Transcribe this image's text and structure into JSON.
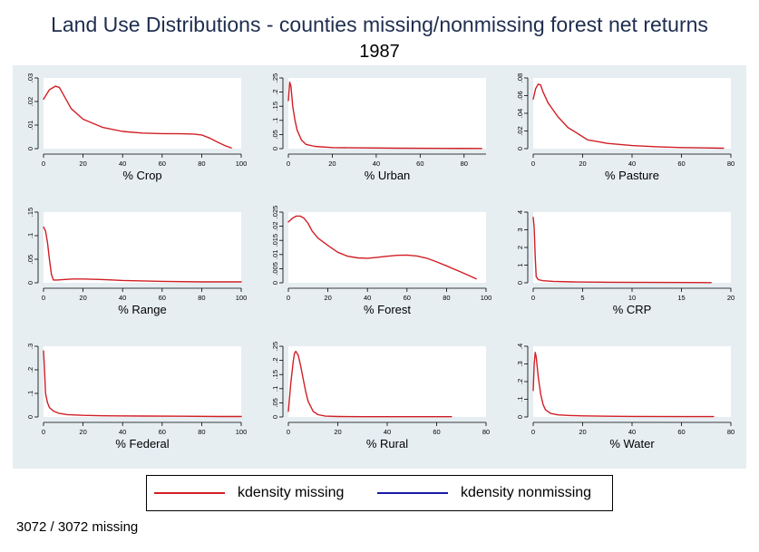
{
  "title": "Land Use Distributions - counties missing/nonmissing forest net returns",
  "subtitle": "1987",
  "note": "3072 / 3072 missing",
  "legend": {
    "placement": "bottom",
    "items": [
      {
        "label": "kdensity missing",
        "color": "#d11f26"
      },
      {
        "label": "kdensity nonmissing",
        "color": "#1a1aa6"
      }
    ]
  },
  "colors": {
    "background": "#e6eef2",
    "plot": "#ffffff",
    "missing": "#d11f26",
    "nonmissing": "#1a1aa6",
    "title": "#1e2d4f"
  },
  "chart_data": [
    {
      "type": "line",
      "xlabel": "% Crop",
      "xlim": [
        0,
        100
      ],
      "xticks": [
        0,
        20,
        40,
        60,
        80,
        100
      ],
      "ylim": [
        0,
        0.03
      ],
      "yticks": [
        "0",
        ".01",
        ".02",
        ".03"
      ],
      "series": [
        {
          "name": "kdensity missing",
          "x": [
            0,
            3,
            6,
            8,
            10,
            14,
            20,
            30,
            40,
            50,
            60,
            70,
            76,
            80,
            84,
            88,
            92,
            95
          ],
          "y": [
            0.021,
            0.025,
            0.0265,
            0.026,
            0.023,
            0.017,
            0.0125,
            0.009,
            0.0073,
            0.0066,
            0.0064,
            0.0063,
            0.0062,
            0.0058,
            0.0045,
            0.0028,
            0.0012,
            0.0003
          ]
        }
      ]
    },
    {
      "type": "line",
      "xlabel": "% Urban",
      "xlim": [
        0,
        90
      ],
      "xticks": [
        0,
        20,
        40,
        60,
        80
      ],
      "ylim": [
        0,
        0.25
      ],
      "yticks": [
        "0",
        ".05",
        ".1",
        ".15",
        ".2",
        ".25"
      ],
      "series": [
        {
          "name": "kdensity missing",
          "x": [
            0,
            0.6,
            1.2,
            2,
            3,
            4,
            6,
            8,
            12,
            20,
            30,
            50,
            70,
            88
          ],
          "y": [
            0.17,
            0.235,
            0.22,
            0.15,
            0.1,
            0.065,
            0.03,
            0.015,
            0.008,
            0.004,
            0.003,
            0.0015,
            0.001,
            0.0008
          ]
        }
      ]
    },
    {
      "type": "line",
      "xlabel": "% Pasture",
      "xlim": [
        0,
        80
      ],
      "xticks": [
        0,
        20,
        40,
        60,
        80
      ],
      "ylim": [
        0,
        0.08
      ],
      "yticks": [
        "0",
        ".02",
        ".04",
        ".06",
        ".08"
      ],
      "series": [
        {
          "name": "kdensity missing",
          "x": [
            0,
            1,
            2,
            3,
            4,
            6,
            8,
            10,
            14,
            18,
            22,
            26,
            30,
            40,
            50,
            60,
            70,
            77
          ],
          "y": [
            0.056,
            0.068,
            0.073,
            0.072,
            0.064,
            0.052,
            0.044,
            0.036,
            0.024,
            0.017,
            0.01,
            0.008,
            0.006,
            0.0035,
            0.0022,
            0.0012,
            0.0008,
            0.0005
          ]
        }
      ]
    },
    {
      "type": "line",
      "xlabel": "% Range",
      "xlim": [
        0,
        100
      ],
      "xticks": [
        0,
        20,
        40,
        60,
        80,
        100
      ],
      "ylim": [
        0,
        0.15
      ],
      "yticks": [
        "0",
        ".05",
        ".1",
        ".15"
      ],
      "series": [
        {
          "name": "kdensity missing",
          "x": [
            0,
            1,
            2,
            3,
            4,
            5,
            7,
            10,
            15,
            20,
            30,
            40,
            50,
            60,
            80,
            100
          ],
          "y": [
            0.118,
            0.11,
            0.085,
            0.05,
            0.018,
            0.006,
            0.006,
            0.007,
            0.008,
            0.008,
            0.007,
            0.005,
            0.004,
            0.003,
            0.002,
            0.002
          ]
        }
      ]
    },
    {
      "type": "line",
      "xlabel": "% Forest",
      "xlim": [
        0,
        100
      ],
      "xticks": [
        0,
        20,
        40,
        60,
        80,
        100
      ],
      "ylim": [
        0,
        0.025
      ],
      "yticks": [
        "0",
        ".005",
        ".01",
        ".015",
        ".02",
        ".025"
      ],
      "series": [
        {
          "name": "kdensity missing",
          "x": [
            0,
            2,
            4,
            6,
            8,
            10,
            12,
            15,
            20,
            25,
            30,
            35,
            40,
            45,
            50,
            55,
            60,
            65,
            70,
            75,
            80,
            85,
            90,
            95
          ],
          "y": [
            0.0215,
            0.0228,
            0.0236,
            0.0236,
            0.0228,
            0.021,
            0.0183,
            0.0158,
            0.0132,
            0.0108,
            0.0094,
            0.0088,
            0.0087,
            0.009,
            0.0094,
            0.0097,
            0.0098,
            0.0095,
            0.0087,
            0.0074,
            0.006,
            0.0045,
            0.003,
            0.0014
          ]
        }
      ]
    },
    {
      "type": "line",
      "xlabel": "% CRP",
      "xlim": [
        0,
        20
      ],
      "xticks": [
        0,
        5,
        10,
        15,
        20
      ],
      "ylim": [
        0,
        4
      ],
      "yticks": [
        "0",
        "1",
        "2",
        "3",
        "4"
      ],
      "series": [
        {
          "name": "kdensity missing",
          "x": [
            0,
            0.1,
            0.2,
            0.3,
            0.5,
            1,
            2,
            4,
            8,
            12,
            18
          ],
          "y": [
            3.7,
            3.1,
            1.5,
            0.35,
            0.18,
            0.12,
            0.08,
            0.05,
            0.03,
            0.02,
            0.01
          ]
        }
      ]
    },
    {
      "type": "line",
      "xlabel": "% Federal",
      "xlim": [
        0,
        100
      ],
      "xticks": [
        0,
        20,
        40,
        60,
        80,
        100
      ],
      "ylim": [
        0,
        0.3
      ],
      "yticks": [
        "0",
        ".1",
        ".2",
        ".3"
      ],
      "series": [
        {
          "name": "kdensity missing",
          "x": [
            0,
            0.5,
            1,
            2,
            3,
            5,
            8,
            12,
            20,
            30,
            50,
            70,
            90,
            100
          ],
          "y": [
            0.28,
            0.2,
            0.1,
            0.06,
            0.04,
            0.025,
            0.015,
            0.01,
            0.007,
            0.005,
            0.004,
            0.003,
            0.002,
            0.002
          ]
        }
      ]
    },
    {
      "type": "line",
      "xlabel": "% Rural",
      "xlim": [
        0,
        80
      ],
      "xticks": [
        0,
        20,
        40,
        60,
        80
      ],
      "ylim": [
        0,
        0.25
      ],
      "yticks": [
        "0",
        ".05",
        ".1",
        ".15",
        ".2",
        ".25"
      ],
      "series": [
        {
          "name": "kdensity missing",
          "x": [
            0,
            1,
            2,
            2.5,
            3,
            4,
            5,
            6,
            7,
            8,
            10,
            12,
            15,
            20,
            30,
            40,
            50,
            60,
            66
          ],
          "y": [
            0.02,
            0.12,
            0.2,
            0.225,
            0.232,
            0.218,
            0.18,
            0.135,
            0.09,
            0.055,
            0.02,
            0.008,
            0.003,
            0.0015,
            0.001,
            0.001,
            0.001,
            0.001,
            0.001
          ]
        }
      ]
    },
    {
      "type": "line",
      "xlabel": "% Water",
      "xlim": [
        0,
        80
      ],
      "xticks": [
        0,
        20,
        40,
        60,
        80
      ],
      "ylim": [
        0,
        0.4
      ],
      "yticks": [
        "0",
        ".1",
        ".2",
        ".3",
        ".4"
      ],
      "series": [
        {
          "name": "kdensity missing",
          "x": [
            0,
            0.4,
            0.8,
            1.2,
            2,
            3,
            4,
            5,
            7,
            10,
            15,
            20,
            30,
            40,
            60,
            73
          ],
          "y": [
            0.15,
            0.3,
            0.365,
            0.34,
            0.23,
            0.13,
            0.07,
            0.04,
            0.02,
            0.012,
            0.008,
            0.006,
            0.004,
            0.003,
            0.002,
            0.002
          ]
        }
      ]
    }
  ]
}
